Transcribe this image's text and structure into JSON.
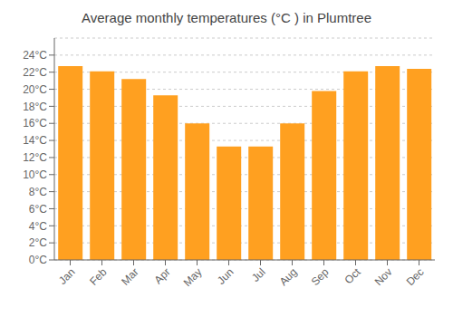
{
  "chart_data": {
    "type": "bar",
    "title": "Average monthly temperatures (°C ) in Plumtree",
    "categories": [
      "Jan",
      "Feb",
      "Mar",
      "Apr",
      "May",
      "Jun",
      "Jul",
      "Aug",
      "Sep",
      "Oct",
      "Nov",
      "Dec"
    ],
    "values": [
      22.7,
      22.1,
      21.2,
      19.3,
      16.0,
      13.3,
      13.3,
      16.0,
      19.8,
      22.1,
      22.7,
      22.4
    ],
    "color": "#FFA020",
    "ylim": [
      0,
      26
    ],
    "yticks": [
      {
        "value": 0,
        "label": "0°C"
      },
      {
        "value": 2,
        "label": "2°C"
      },
      {
        "value": 4,
        "label": "4°C"
      },
      {
        "value": 6,
        "label": "6°C"
      },
      {
        "value": 8,
        "label": "8°C"
      },
      {
        "value": 10,
        "label": "10°C"
      },
      {
        "value": 12,
        "label": "12°C"
      },
      {
        "value": 14,
        "label": "14°C"
      },
      {
        "value": 16,
        "label": "16°C"
      },
      {
        "value": 18,
        "label": "18°C"
      },
      {
        "value": 20,
        "label": "20°C"
      },
      {
        "value": 22,
        "label": "22°C"
      },
      {
        "value": 24,
        "label": "24°C"
      }
    ],
    "grid": true
  }
}
